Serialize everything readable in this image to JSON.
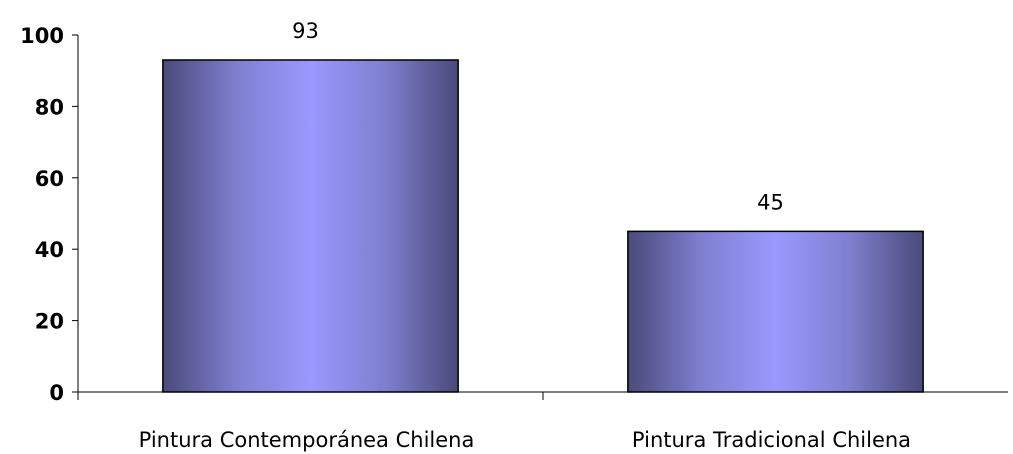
{
  "chart_data": {
    "type": "bar",
    "categories": [
      "Pintura Contemporánea Chilena",
      "Pintura Tradicional Chilena"
    ],
    "values": [
      93,
      45
    ],
    "data_labels": [
      "93",
      "45"
    ],
    "title": "",
    "xlabel": "",
    "ylabel": "",
    "ylim": [
      0,
      100
    ],
    "y_ticks": [
      0,
      20,
      40,
      60,
      80,
      100
    ],
    "y_tick_labels": [
      "0",
      "20",
      "40",
      "60",
      "80",
      "100"
    ],
    "grid": false,
    "legend": "none",
    "bar_gradient": {
      "edge": "#4a4a7a",
      "mid": "#7f7fd0",
      "center": "#9999ff"
    },
    "bar_stroke": "#000000"
  }
}
